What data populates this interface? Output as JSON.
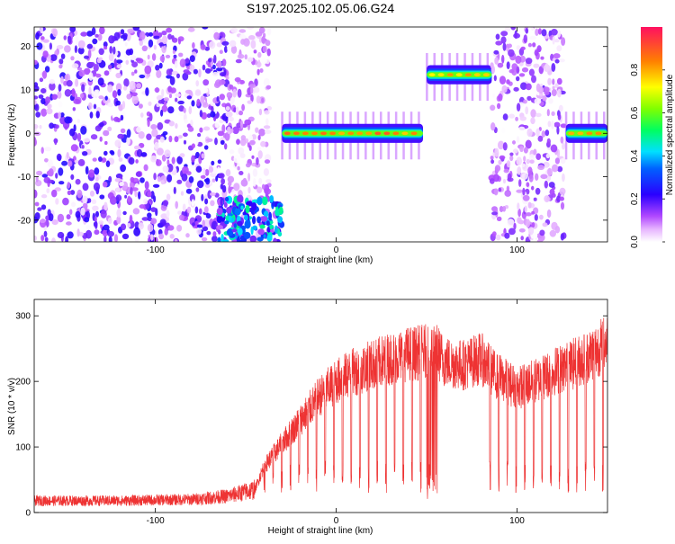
{
  "figure": {
    "title": "S197.2025.102.05.06.G24"
  },
  "chart_data": [
    {
      "type": "heatmap",
      "name": "spectrogram",
      "xlabel": "Height of straight line (km)",
      "ylabel": "Frequency (Hz)",
      "xlim": [
        -167,
        150
      ],
      "ylim": [
        -25,
        24.5
      ],
      "x_ticks": [
        -100,
        0,
        100
      ],
      "y_ticks": [
        -20,
        -10,
        0,
        10,
        20
      ],
      "x_tick_labels": [
        "-100",
        "0",
        "100"
      ],
      "y_tick_labels": [
        "-20",
        "-10",
        "0",
        "10",
        "20"
      ],
      "colorbar": {
        "label": "Normalized spectral amplitude",
        "range": [
          0,
          1
        ],
        "ticks": [
          0.0,
          0.2,
          0.4,
          0.6,
          0.8
        ],
        "tick_labels": [
          "0.0",
          "0.2",
          "0.4",
          "0.6",
          "0.8"
        ]
      },
      "regions": [
        {
          "kind": "noise",
          "x": [
            -167,
            -60
          ],
          "y": [
            -25,
            24.5
          ],
          "amplitude": 0.2
        },
        {
          "kind": "noise",
          "x": [
            -60,
            -37
          ],
          "y": [
            -25,
            24.5
          ],
          "amplitude": 0.12
        },
        {
          "kind": "blob",
          "x": [
            -65,
            -30
          ],
          "y": [
            -25,
            -15
          ],
          "amplitude": 0.4
        },
        {
          "kind": "tone",
          "x": [
            -30,
            48
          ],
          "freq": 0,
          "amplitude": 0.9
        },
        {
          "kind": "tone",
          "x": [
            50,
            86
          ],
          "freq": 13.5,
          "amplitude": 0.85
        },
        {
          "kind": "noise",
          "x": [
            86,
            126
          ],
          "y": [
            -25,
            24.5
          ],
          "amplitude": 0.15
        },
        {
          "kind": "tone",
          "x": [
            127,
            150
          ],
          "freq": 0,
          "amplitude": 0.9
        }
      ]
    },
    {
      "type": "line",
      "name": "snr",
      "xlabel": "Height of straight line (km)",
      "ylabel": "SNR (10 * v/v)",
      "xlim": [
        -167,
        150
      ],
      "ylim": [
        0,
        325
      ],
      "x_ticks": [
        -100,
        0,
        100
      ],
      "y_ticks": [
        0,
        100,
        200,
        300
      ],
      "x_tick_labels": [
        "-100",
        "0",
        "100"
      ],
      "y_tick_labels": [
        "0",
        "100",
        "200",
        "300"
      ],
      "color": "#ee3333",
      "envelope": {
        "x": [
          -167,
          -120,
          -80,
          -60,
          -45,
          -40,
          -30,
          -20,
          -10,
          0,
          10,
          20,
          30,
          40,
          50,
          55,
          60,
          70,
          80,
          88,
          100,
          110,
          120,
          130,
          140,
          150
        ],
        "y": [
          18,
          18,
          20,
          25,
          35,
          70,
          105,
          140,
          175,
          200,
          215,
          225,
          235,
          242,
          245,
          248,
          230,
          225,
          235,
          210,
          190,
          200,
          215,
          225,
          240,
          260
        ]
      }
    }
  ]
}
